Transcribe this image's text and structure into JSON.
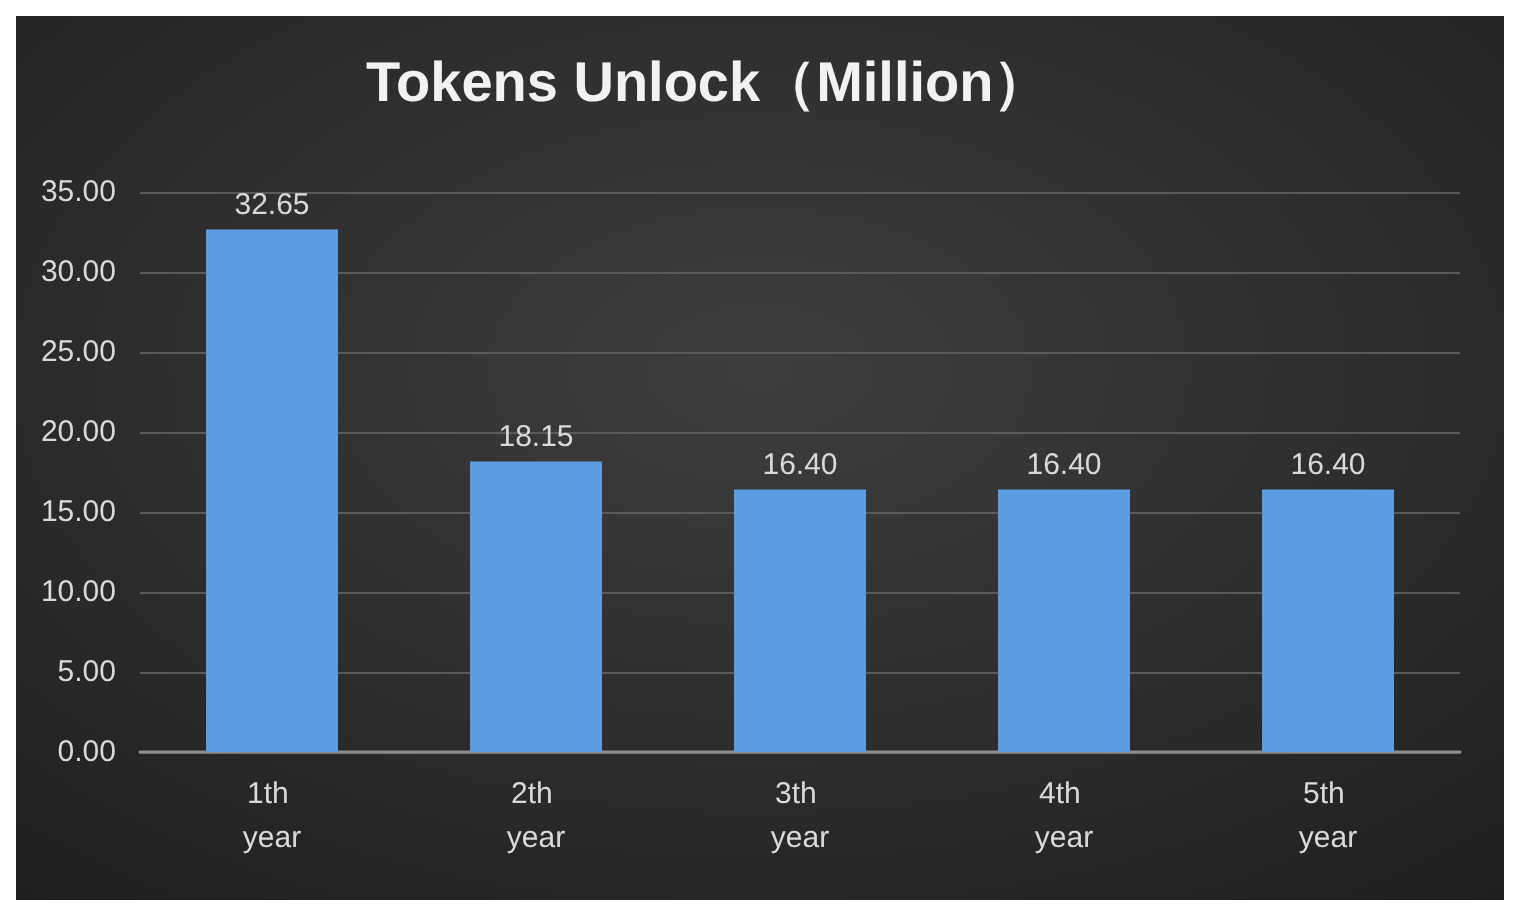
{
  "chart_data": {
    "type": "bar",
    "title": "Tokens Unlock（Million）",
    "categories": [
      "1th year",
      "2th year",
      "3th year",
      "4th year",
      "5th year"
    ],
    "values": [
      32.65,
      18.15,
      16.4,
      16.4,
      16.4
    ],
    "value_labels": [
      "32.65",
      "18.15",
      "16.40",
      "16.40",
      "16.40"
    ],
    "color": "#5b9ee0",
    "ylim": [
      0,
      35
    ],
    "yticks": [
      {
        "value": 0,
        "label": "0.00"
      },
      {
        "value": 5,
        "label": "5.00"
      },
      {
        "value": 10,
        "label": "10.00"
      },
      {
        "value": 15,
        "label": "15.00"
      },
      {
        "value": 20,
        "label": "20.00"
      },
      {
        "value": 25,
        "label": "25.00"
      },
      {
        "value": 30,
        "label": "30.00"
      },
      {
        "value": 35,
        "label": "35.00"
      }
    ],
    "grid": true
  }
}
